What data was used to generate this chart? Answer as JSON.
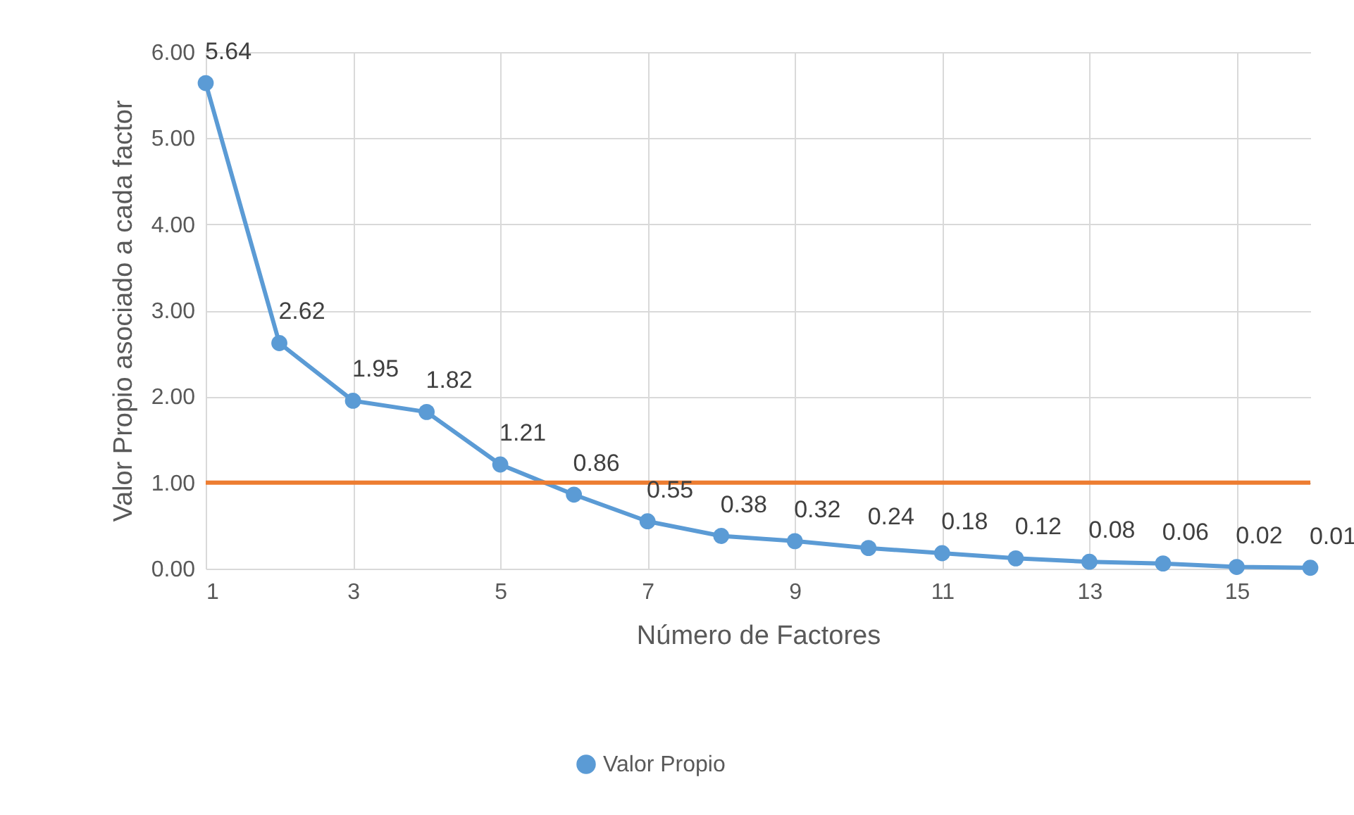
{
  "chart_data": {
    "type": "line",
    "xlabel": "Número de Factores",
    "ylabel": "Valor Propio asociado a cada factor",
    "x": [
      1,
      2,
      3,
      4,
      5,
      6,
      7,
      8,
      9,
      10,
      11,
      12,
      13,
      14,
      15,
      16
    ],
    "series": [
      {
        "name": "Valor Propio",
        "color": "#5b9bd5",
        "values": [
          5.64,
          2.62,
          1.95,
          1.82,
          1.21,
          0.86,
          0.55,
          0.38,
          0.32,
          0.24,
          0.18,
          0.12,
          0.08,
          0.06,
          0.02,
          0.01
        ]
      }
    ],
    "xlim": [
      1,
      16
    ],
    "xticks": [
      1,
      3,
      5,
      7,
      9,
      11,
      13,
      15
    ],
    "ylim": [
      0,
      6
    ],
    "yticks": [
      {
        "value": 0,
        "label": "0.00"
      },
      {
        "value": 1,
        "label": "1.00"
      },
      {
        "value": 2,
        "label": "2.00"
      },
      {
        "value": 3,
        "label": "3.00"
      },
      {
        "value": 4,
        "label": "4.00"
      },
      {
        "value": 5,
        "label": "5.00"
      },
      {
        "value": 6,
        "label": "6.00"
      }
    ],
    "ref_lines": [
      {
        "axis": "y",
        "value": 1,
        "color": "#ed7d31"
      }
    ],
    "data_labels": true,
    "grid": true,
    "legend": "bottom",
    "marker": "circle",
    "line_style": "solid"
  }
}
